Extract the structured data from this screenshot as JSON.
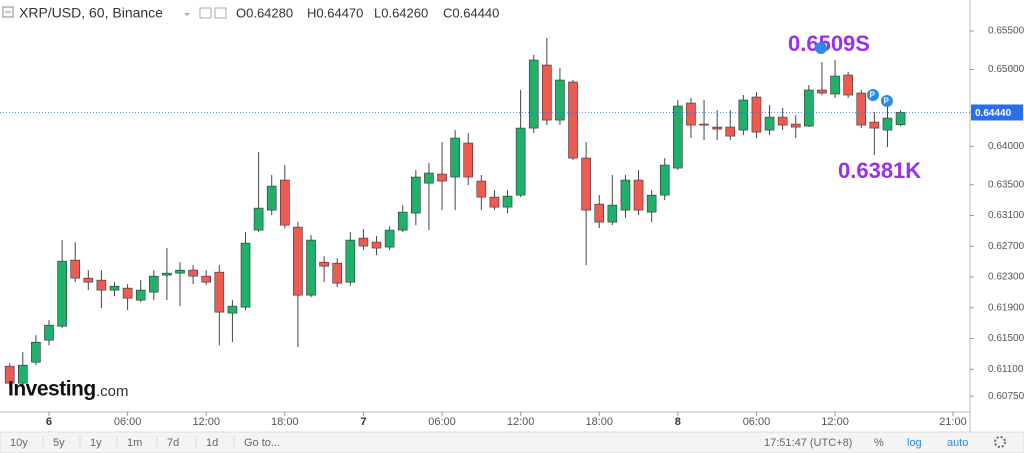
{
  "header": {
    "symbol": "XRP/USD, 60, Binance",
    "ohlc": [
      "O0.64280",
      "H0.64470",
      "L0.64260",
      "C0.64440"
    ]
  },
  "logo": {
    "main": "Investing",
    "suffix": ".com"
  },
  "toolbar": {
    "ranges": [
      "10y",
      "5y",
      "1y",
      "1m",
      "7d",
      "1d",
      "Go to..."
    ],
    "time": "17:51:47 (UTC+8)",
    "percent": "%",
    "log": "log",
    "auto": "auto"
  },
  "chart_data": {
    "type": "candlestick",
    "up_color": "#1fb06a",
    "down_color": "#ee5b52",
    "grid": false,
    "annotations": [
      "0.6509S",
      "0.6381K"
    ],
    "last_price": {
      "value": 0.6444,
      "label": "0.64440"
    },
    "xlim": [
      -3.74,
      70.3
    ],
    "ylim": [
      0.6057,
      0.65903
    ],
    "xticks": [
      {
        "value": 0,
        "label": "6"
      },
      {
        "value": 6,
        "label": "06:00"
      },
      {
        "value": 12,
        "label": "12:00"
      },
      {
        "value": 18,
        "label": "18:00"
      },
      {
        "value": 24,
        "label": "7"
      },
      {
        "value": 30,
        "label": "06:00"
      },
      {
        "value": 36,
        "label": "12:00"
      },
      {
        "value": 42,
        "label": "18:00"
      },
      {
        "value": 48,
        "label": "8"
      },
      {
        "value": 54,
        "label": "06:00"
      },
      {
        "value": 60,
        "label": "12:00"
      },
      {
        "value": 69,
        "label": "21:00"
      }
    ],
    "yticks": [
      {
        "value": 0.655,
        "label": "0.65500"
      },
      {
        "value": 0.65,
        "label": "0.65000"
      },
      {
        "value": 0.64,
        "label": "0.64000"
      },
      {
        "value": 0.635,
        "label": "0.63500"
      },
      {
        "value": 0.631,
        "label": "0.63100"
      },
      {
        "value": 0.627,
        "label": "0.62700"
      },
      {
        "value": 0.623,
        "label": "0.62300"
      },
      {
        "value": 0.619,
        "label": "0.61900"
      },
      {
        "value": 0.615,
        "label": "0.61500"
      },
      {
        "value": 0.611,
        "label": "0.61100"
      },
      {
        "value": 0.6075,
        "label": "0.60750"
      }
    ],
    "x": [
      -3,
      -2,
      -1,
      0,
      1,
      2,
      3,
      4,
      5,
      6,
      7,
      8,
      9,
      10,
      11,
      12,
      13,
      14,
      15,
      16,
      17,
      18,
      19,
      20,
      21,
      22,
      23,
      24,
      25,
      26,
      27,
      28,
      29,
      30,
      31,
      32,
      33,
      34,
      35,
      36,
      37,
      38,
      39,
      40,
      41,
      42,
      43,
      44,
      45,
      46,
      47,
      48,
      49,
      50,
      51,
      52,
      53,
      54,
      55,
      56,
      57,
      58,
      59,
      60,
      61,
      62,
      63,
      64,
      65
    ],
    "open": [
      0.6114,
      0.60919,
      0.61192,
      0.61478,
      0.6166,
      0.62519,
      0.62285,
      0.62259,
      0.62129,
      0.62155,
      0.61999,
      0.62103,
      0.62324,
      0.6235,
      0.62389,
      0.62311,
      0.62363,
      0.6183,
      0.61908,
      0.6291,
      0.6317,
      0.63561,
      0.62949,
      0.62064,
      0.62493,
      0.6248,
      0.62233,
      0.62806,
      0.62754,
      0.62689,
      0.6291,
      0.63131,
      0.63521,
      0.63639,
      0.636,
      0.64042,
      0.63548,
      0.63339,
      0.63209,
      0.63365,
      0.64237,
      0.65057,
      0.64341,
      0.64836,
      0.63847,
      0.63248,
      0.63014,
      0.6317,
      0.63561,
      0.63144,
      0.63365,
      0.63717,
      0.64563,
      0.64289,
      0.6425,
      0.6425,
      0.64211,
      0.64641,
      0.64211,
      0.6438,
      0.64289,
      0.64263,
      0.64732,
      0.6468,
      0.64927,
      0.64693,
      0.64315,
      0.64211,
      0.6428
    ],
    "high": [
      0.61179,
      0.61322,
      0.61543,
      0.61739,
      0.6278,
      0.62754,
      0.62389,
      0.62389,
      0.62233,
      0.62207,
      0.62259,
      0.62389,
      0.62676,
      0.62493,
      0.62454,
      0.62389,
      0.62454,
      0.61999,
      0.62884,
      0.63925,
      0.63626,
      0.63756,
      0.63014,
      0.62845,
      0.62571,
      0.62545,
      0.62884,
      0.62923,
      0.62832,
      0.62962,
      0.63235,
      0.63691,
      0.63782,
      0.64055,
      0.64211,
      0.64172,
      0.63626,
      0.6343,
      0.6343,
      0.64732,
      0.65187,
      0.65409,
      0.65018,
      0.64862,
      0.64055,
      0.63365,
      0.63626,
      0.63626,
      0.63691,
      0.6343,
      0.63847,
      0.64602,
      0.64628,
      0.64602,
      0.64471,
      0.64471,
      0.64667,
      0.64706,
      0.64537,
      0.64498,
      0.64406,
      0.64797,
      0.65096,
      0.65122,
      0.64966,
      0.64732,
      0.64445,
      0.64537,
      0.6447
    ],
    "low": [
      0.60854,
      0.60763,
      0.61153,
      0.61413,
      0.61634,
      0.62233,
      0.62129,
      0.61895,
      0.62051,
      0.61869,
      0.61973,
      0.61999,
      0.61999,
      0.61921,
      0.62207,
      0.62194,
      0.61413,
      0.61452,
      0.61869,
      0.62884,
      0.63105,
      0.62936,
      0.61387,
      0.62038,
      0.62233,
      0.62168,
      0.62181,
      0.6265,
      0.62584,
      0.6265,
      0.62884,
      0.62975,
      0.6291,
      0.6317,
      0.6317,
      0.63495,
      0.6317,
      0.6317,
      0.63131,
      0.63339,
      0.64172,
      0.64276,
      0.64276,
      0.63821,
      0.62454,
      0.62936,
      0.62975,
      0.63066,
      0.63105,
      0.63014,
      0.633,
      0.63691,
      0.64107,
      0.64081,
      0.64081,
      0.64081,
      0.64146,
      0.64107,
      0.64146,
      0.64211,
      0.64107,
      0.6425,
      0.64667,
      0.64628,
      0.64628,
      0.64237,
      0.63886,
      0.6399,
      0.6426
    ],
    "close": [
      0.60919,
      0.61153,
      0.61452,
      0.61673,
      0.62506,
      0.62285,
      0.62233,
      0.62129,
      0.62181,
      0.62025,
      0.62129,
      0.62311,
      0.6235,
      0.62389,
      0.62311,
      0.62233,
      0.61843,
      0.61921,
      0.62741,
      0.63196,
      0.63482,
      0.62975,
      0.62064,
      0.6278,
      0.62441,
      0.6222,
      0.6278,
      0.62702,
      0.62676,
      0.6291,
      0.63144,
      0.636,
      0.63652,
      0.63548,
      0.64107,
      0.636,
      0.63339,
      0.63209,
      0.63352,
      0.64237,
      0.65122,
      0.64341,
      0.64862,
      0.63847,
      0.6317,
      0.63014,
      0.63235,
      0.63561,
      0.6317,
      0.63365,
      0.63756,
      0.64524,
      0.64276,
      0.64276,
      0.64224,
      0.64133,
      0.64602,
      0.64185,
      0.6438,
      0.64276,
      0.6425,
      0.64732,
      0.64693,
      0.64914,
      0.64667,
      0.64276,
      0.64237,
      0.64367,
      0.6444
    ]
  }
}
